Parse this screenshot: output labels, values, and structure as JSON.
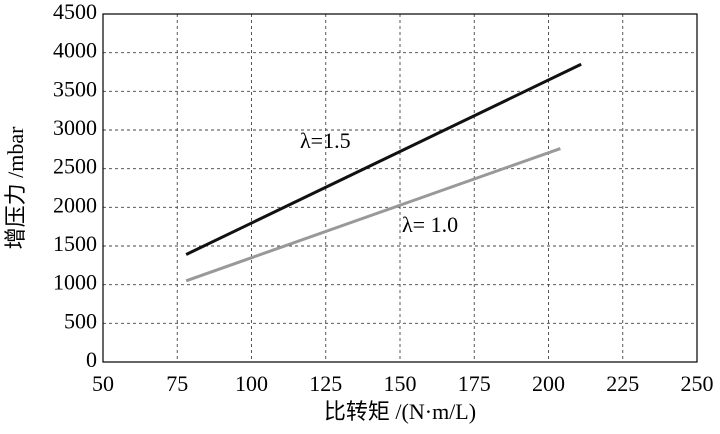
{
  "chart_data": {
    "type": "line",
    "x_label": "比转矩 /(N·m/L)",
    "y_label": "增压力 /mbar",
    "series": [
      {
        "name": "λ=1.5",
        "color": "#111111",
        "x": [
          78,
          211
        ],
        "values": [
          1390,
          3850
        ]
      },
      {
        "name": "λ= 1.0",
        "color": "#999999",
        "x": [
          78,
          204
        ],
        "values": [
          1050,
          2760
        ]
      }
    ],
    "xlim": [
      50,
      250
    ],
    "xticks": [
      50,
      75,
      100,
      125,
      150,
      175,
      200,
      225,
      250
    ],
    "ylim": [
      0,
      4500
    ],
    "yticks": [
      0,
      500,
      1000,
      1500,
      2000,
      2500,
      3000,
      3500,
      4000,
      4500
    ],
    "grid": true
  }
}
